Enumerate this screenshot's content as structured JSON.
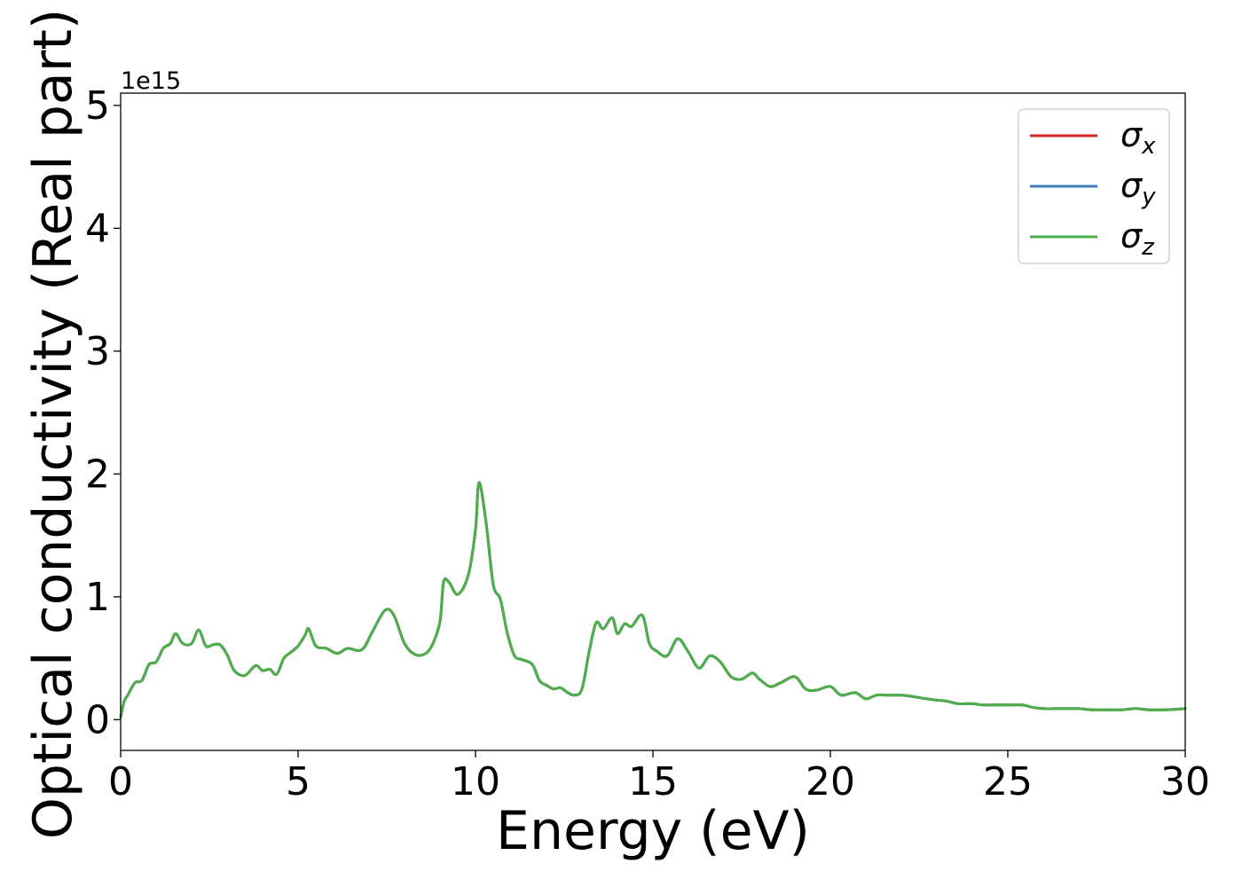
{
  "chart_data": {
    "type": "line",
    "xlabel": "Energy (eV)",
    "ylabel": "Optical conductivity (Real part)",
    "y_offset_text": "1e15",
    "xlim": [
      0,
      30
    ],
    "ylim": [
      -0.25,
      5.1
    ],
    "x_ticks": [
      0,
      5,
      10,
      15,
      20,
      25,
      30
    ],
    "x_tick_labels": [
      "0",
      "5",
      "10",
      "15",
      "20",
      "25",
      "30"
    ],
    "y_ticks": [
      0,
      1,
      2,
      3,
      4,
      5
    ],
    "y_tick_labels": [
      "0",
      "1",
      "2",
      "3",
      "4",
      "5"
    ],
    "grid": false,
    "legend_position": "top-right",
    "series": [
      {
        "name": "σx",
        "symbol": "σ",
        "subscript": "x",
        "color": "#d62728"
      },
      {
        "name": "σy",
        "symbol": "σ",
        "subscript": "y",
        "color": "#3a7dbd"
      },
      {
        "name": "σz",
        "symbol": "σ",
        "subscript": "z",
        "color": "#4daf4a"
      }
    ],
    "x": [
      0,
      0.1,
      0.2,
      0.4,
      0.6,
      0.8,
      1.0,
      1.2,
      1.4,
      1.55,
      1.75,
      2.0,
      2.2,
      2.4,
      2.6,
      2.8,
      3.0,
      3.2,
      3.5,
      3.8,
      4.0,
      4.2,
      4.4,
      4.6,
      4.8,
      5.0,
      5.2,
      5.3,
      5.5,
      5.8,
      6.1,
      6.4,
      6.8,
      7.1,
      7.45,
      7.7,
      8.0,
      8.3,
      8.6,
      8.8,
      9.0,
      9.1,
      9.25,
      9.5,
      9.8,
      10.0,
      10.1,
      10.3,
      10.5,
      10.7,
      10.9,
      11.1,
      11.3,
      11.6,
      11.8,
      12.0,
      12.2,
      12.4,
      12.6,
      12.8,
      13.0,
      13.2,
      13.4,
      13.6,
      13.85,
      14.0,
      14.2,
      14.4,
      14.7,
      14.9,
      15.1,
      15.4,
      15.7,
      16.0,
      16.3,
      16.6,
      16.9,
      17.2,
      17.5,
      17.8,
      18.0,
      18.3,
      18.6,
      19.0,
      19.3,
      19.6,
      20.0,
      20.3,
      20.7,
      21.0,
      21.3,
      21.6,
      22.0,
      22.3,
      22.7,
      23.0,
      23.3,
      23.6,
      24.0,
      24.3,
      24.6,
      25.0,
      25.4,
      25.7,
      26.0,
      26.3,
      26.6,
      27.0,
      27.4,
      27.8,
      28.2,
      28.6,
      29.0,
      29.4,
      30.0
    ],
    "values": [
      0.02,
      0.15,
      0.2,
      0.3,
      0.32,
      0.45,
      0.47,
      0.58,
      0.62,
      0.7,
      0.62,
      0.62,
      0.73,
      0.6,
      0.61,
      0.61,
      0.53,
      0.4,
      0.36,
      0.44,
      0.4,
      0.41,
      0.37,
      0.5,
      0.55,
      0.6,
      0.69,
      0.74,
      0.6,
      0.58,
      0.54,
      0.58,
      0.57,
      0.72,
      0.89,
      0.85,
      0.62,
      0.53,
      0.54,
      0.62,
      0.8,
      1.12,
      1.12,
      1.02,
      1.18,
      1.55,
      1.93,
      1.6,
      1.1,
      0.98,
      0.7,
      0.52,
      0.49,
      0.45,
      0.32,
      0.28,
      0.25,
      0.26,
      0.22,
      0.2,
      0.25,
      0.55,
      0.79,
      0.74,
      0.83,
      0.7,
      0.78,
      0.76,
      0.85,
      0.62,
      0.56,
      0.52,
      0.66,
      0.55,
      0.42,
      0.52,
      0.47,
      0.35,
      0.33,
      0.38,
      0.33,
      0.27,
      0.3,
      0.35,
      0.25,
      0.24,
      0.27,
      0.2,
      0.22,
      0.17,
      0.2,
      0.2,
      0.2,
      0.19,
      0.17,
      0.16,
      0.15,
      0.13,
      0.13,
      0.12,
      0.12,
      0.12,
      0.12,
      0.1,
      0.09,
      0.09,
      0.09,
      0.09,
      0.08,
      0.08,
      0.08,
      0.09,
      0.08,
      0.08,
      0.09
    ]
  }
}
